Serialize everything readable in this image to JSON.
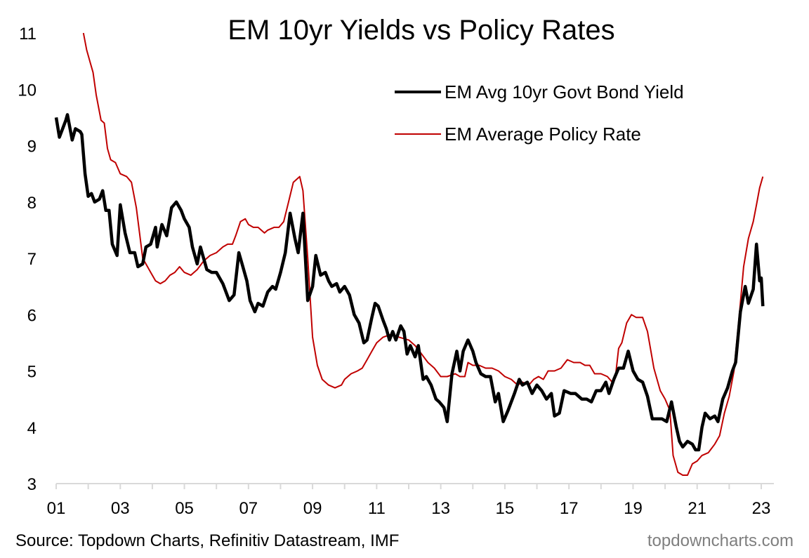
{
  "chart_data": {
    "type": "line",
    "title": "EM 10yr Yields vs Policy Rates",
    "xlabel": "",
    "ylabel": "",
    "xlim": [
      2001,
      2023
    ],
    "ylim": [
      3,
      11
    ],
    "grid": false,
    "yticks": [
      "3",
      "4",
      "5",
      "6",
      "7",
      "8",
      "9",
      "10",
      "11"
    ],
    "xticks": [
      "01",
      "03",
      "05",
      "07",
      "09",
      "11",
      "13",
      "15",
      "17",
      "19",
      "21",
      "23"
    ],
    "legend_position": "top-right",
    "series": [
      {
        "name": "EM Avg 10yr Govt Bond Yield",
        "color": "#000000",
        "points": [
          [
            2001.0,
            9.5
          ],
          [
            2001.1,
            9.15
          ],
          [
            2001.3,
            9.45
          ],
          [
            2001.35,
            9.55
          ],
          [
            2001.5,
            9.1
          ],
          [
            2001.6,
            9.3
          ],
          [
            2001.75,
            9.25
          ],
          [
            2001.8,
            9.2
          ],
          [
            2001.9,
            8.5
          ],
          [
            2002.0,
            8.1
          ],
          [
            2002.1,
            8.15
          ],
          [
            2002.2,
            8.0
          ],
          [
            2002.35,
            8.05
          ],
          [
            2002.45,
            8.2
          ],
          [
            2002.55,
            7.85
          ],
          [
            2002.65,
            7.85
          ],
          [
            2002.75,
            7.25
          ],
          [
            2002.9,
            7.05
          ],
          [
            2003.0,
            7.95
          ],
          [
            2003.15,
            7.45
          ],
          [
            2003.3,
            7.1
          ],
          [
            2003.45,
            7.1
          ],
          [
            2003.55,
            6.85
          ],
          [
            2003.7,
            6.9
          ],
          [
            2003.8,
            7.2
          ],
          [
            2003.95,
            7.25
          ],
          [
            2004.1,
            7.55
          ],
          [
            2004.15,
            7.2
          ],
          [
            2004.3,
            7.6
          ],
          [
            2004.45,
            7.4
          ],
          [
            2004.6,
            7.9
          ],
          [
            2004.75,
            8.0
          ],
          [
            2004.9,
            7.85
          ],
          [
            2005.0,
            7.7
          ],
          [
            2005.15,
            7.55
          ],
          [
            2005.25,
            7.2
          ],
          [
            2005.4,
            6.9
          ],
          [
            2005.5,
            7.2
          ],
          [
            2005.7,
            6.8
          ],
          [
            2005.85,
            6.75
          ],
          [
            2006.0,
            6.75
          ],
          [
            2006.2,
            6.55
          ],
          [
            2006.4,
            6.25
          ],
          [
            2006.55,
            6.35
          ],
          [
            2006.7,
            7.1
          ],
          [
            2006.8,
            6.9
          ],
          [
            2006.95,
            6.6
          ],
          [
            2007.05,
            6.25
          ],
          [
            2007.2,
            6.05
          ],
          [
            2007.3,
            6.2
          ],
          [
            2007.45,
            6.15
          ],
          [
            2007.6,
            6.4
          ],
          [
            2007.75,
            6.5
          ],
          [
            2007.85,
            6.45
          ],
          [
            2008.0,
            6.75
          ],
          [
            2008.15,
            7.1
          ],
          [
            2008.3,
            7.8
          ],
          [
            2008.45,
            7.35
          ],
          [
            2008.55,
            7.1
          ],
          [
            2008.7,
            7.8
          ],
          [
            2008.85,
            6.25
          ],
          [
            2009.0,
            6.5
          ],
          [
            2009.1,
            7.05
          ],
          [
            2009.25,
            6.7
          ],
          [
            2009.4,
            6.75
          ],
          [
            2009.5,
            6.6
          ],
          [
            2009.6,
            6.5
          ],
          [
            2009.75,
            6.55
          ],
          [
            2009.85,
            6.4
          ],
          [
            2010.0,
            6.5
          ],
          [
            2010.15,
            6.35
          ],
          [
            2010.3,
            6.0
          ],
          [
            2010.45,
            5.85
          ],
          [
            2010.6,
            5.5
          ],
          [
            2010.7,
            5.55
          ],
          [
            2010.85,
            5.95
          ],
          [
            2010.95,
            6.2
          ],
          [
            2011.05,
            6.15
          ],
          [
            2011.2,
            5.9
          ],
          [
            2011.3,
            5.75
          ],
          [
            2011.4,
            5.55
          ],
          [
            2011.5,
            5.7
          ],
          [
            2011.6,
            5.55
          ],
          [
            2011.75,
            5.8
          ],
          [
            2011.85,
            5.7
          ],
          [
            2011.95,
            5.3
          ],
          [
            2012.05,
            5.45
          ],
          [
            2012.2,
            5.25
          ],
          [
            2012.3,
            5.45
          ],
          [
            2012.45,
            4.85
          ],
          [
            2012.55,
            4.9
          ],
          [
            2012.7,
            4.75
          ],
          [
            2012.85,
            4.5
          ],
          [
            2012.95,
            4.45
          ],
          [
            2013.1,
            4.35
          ],
          [
            2013.2,
            4.1
          ],
          [
            2013.35,
            4.95
          ],
          [
            2013.5,
            5.35
          ],
          [
            2013.6,
            5.0
          ],
          [
            2013.7,
            5.35
          ],
          [
            2013.85,
            5.55
          ],
          [
            2014.0,
            5.35
          ],
          [
            2014.1,
            5.15
          ],
          [
            2014.25,
            4.95
          ],
          [
            2014.4,
            4.9
          ],
          [
            2014.55,
            4.9
          ],
          [
            2014.7,
            4.45
          ],
          [
            2014.8,
            4.6
          ],
          [
            2014.95,
            4.1
          ],
          [
            2015.1,
            4.3
          ],
          [
            2015.3,
            4.6
          ],
          [
            2015.45,
            4.85
          ],
          [
            2015.55,
            4.75
          ],
          [
            2015.7,
            4.8
          ],
          [
            2015.85,
            4.6
          ],
          [
            2016.0,
            4.75
          ],
          [
            2016.15,
            4.65
          ],
          [
            2016.3,
            4.5
          ],
          [
            2016.45,
            4.6
          ],
          [
            2016.55,
            4.2
          ],
          [
            2016.7,
            4.25
          ],
          [
            2016.85,
            4.65
          ],
          [
            2017.05,
            4.6
          ],
          [
            2017.2,
            4.6
          ],
          [
            2017.4,
            4.5
          ],
          [
            2017.55,
            4.5
          ],
          [
            2017.7,
            4.45
          ],
          [
            2017.85,
            4.65
          ],
          [
            2018.0,
            4.65
          ],
          [
            2018.15,
            4.8
          ],
          [
            2018.25,
            4.6
          ],
          [
            2018.4,
            4.85
          ],
          [
            2018.55,
            5.05
          ],
          [
            2018.7,
            5.05
          ],
          [
            2018.85,
            5.35
          ],
          [
            2019.0,
            5.0
          ],
          [
            2019.15,
            4.85
          ],
          [
            2019.3,
            4.8
          ],
          [
            2019.45,
            4.55
          ],
          [
            2019.6,
            4.15
          ],
          [
            2019.75,
            4.15
          ],
          [
            2019.9,
            4.15
          ],
          [
            2020.05,
            4.1
          ],
          [
            2020.2,
            4.45
          ],
          [
            2020.35,
            4.0
          ],
          [
            2020.45,
            3.75
          ],
          [
            2020.55,
            3.65
          ],
          [
            2020.7,
            3.75
          ],
          [
            2020.85,
            3.7
          ],
          [
            2020.95,
            3.6
          ],
          [
            2021.05,
            3.6
          ],
          [
            2021.15,
            4.0
          ],
          [
            2021.25,
            4.25
          ],
          [
            2021.4,
            4.15
          ],
          [
            2021.55,
            4.2
          ],
          [
            2021.65,
            4.1
          ],
          [
            2021.8,
            4.5
          ],
          [
            2021.95,
            4.7
          ],
          [
            2022.1,
            5.0
          ],
          [
            2022.2,
            5.15
          ],
          [
            2022.35,
            6.05
          ],
          [
            2022.5,
            6.5
          ],
          [
            2022.6,
            6.2
          ],
          [
            2022.75,
            6.45
          ],
          [
            2022.85,
            7.25
          ],
          [
            2022.95,
            6.6
          ],
          [
            2023.0,
            6.65
          ],
          [
            2023.05,
            6.15
          ]
        ]
      },
      {
        "name": "EM Average Policy Rate",
        "color": "#c00000",
        "points": [
          [
            2001.85,
            11.0
          ],
          [
            2001.95,
            10.7
          ],
          [
            2002.05,
            10.5
          ],
          [
            2002.15,
            10.3
          ],
          [
            2002.25,
            9.9
          ],
          [
            2002.4,
            9.45
          ],
          [
            2002.5,
            9.4
          ],
          [
            2002.6,
            8.95
          ],
          [
            2002.7,
            8.75
          ],
          [
            2002.85,
            8.7
          ],
          [
            2003.0,
            8.5
          ],
          [
            2003.2,
            8.45
          ],
          [
            2003.35,
            8.35
          ],
          [
            2003.5,
            7.9
          ],
          [
            2003.6,
            7.45
          ],
          [
            2003.7,
            7.0
          ],
          [
            2003.8,
            6.9
          ],
          [
            2003.95,
            6.75
          ],
          [
            2004.1,
            6.6
          ],
          [
            2004.25,
            6.55
          ],
          [
            2004.4,
            6.6
          ],
          [
            2004.55,
            6.7
          ],
          [
            2004.7,
            6.75
          ],
          [
            2004.85,
            6.85
          ],
          [
            2005.0,
            6.75
          ],
          [
            2005.2,
            6.7
          ],
          [
            2005.4,
            6.8
          ],
          [
            2005.6,
            6.95
          ],
          [
            2005.8,
            7.05
          ],
          [
            2006.0,
            7.1
          ],
          [
            2006.2,
            7.2
          ],
          [
            2006.35,
            7.25
          ],
          [
            2006.5,
            7.25
          ],
          [
            2006.6,
            7.4
          ],
          [
            2006.75,
            7.65
          ],
          [
            2006.9,
            7.7
          ],
          [
            2007.0,
            7.6
          ],
          [
            2007.15,
            7.55
          ],
          [
            2007.3,
            7.55
          ],
          [
            2007.5,
            7.45
          ],
          [
            2007.6,
            7.5
          ],
          [
            2007.8,
            7.55
          ],
          [
            2007.95,
            7.55
          ],
          [
            2008.1,
            7.65
          ],
          [
            2008.25,
            8.0
          ],
          [
            2008.4,
            8.35
          ],
          [
            2008.5,
            8.4
          ],
          [
            2008.6,
            8.45
          ],
          [
            2008.7,
            8.2
          ],
          [
            2008.85,
            7.0
          ],
          [
            2009.0,
            5.6
          ],
          [
            2009.15,
            5.1
          ],
          [
            2009.3,
            4.85
          ],
          [
            2009.5,
            4.75
          ],
          [
            2009.7,
            4.7
          ],
          [
            2009.9,
            4.75
          ],
          [
            2010.0,
            4.85
          ],
          [
            2010.2,
            4.95
          ],
          [
            2010.4,
            5.0
          ],
          [
            2010.55,
            5.05
          ],
          [
            2010.7,
            5.2
          ],
          [
            2010.85,
            5.35
          ],
          [
            2011.0,
            5.5
          ],
          [
            2011.2,
            5.6
          ],
          [
            2011.45,
            5.65
          ],
          [
            2011.7,
            5.6
          ],
          [
            2012.0,
            5.55
          ],
          [
            2012.2,
            5.45
          ],
          [
            2012.4,
            5.3
          ],
          [
            2012.6,
            5.15
          ],
          [
            2012.8,
            5.05
          ],
          [
            2013.0,
            4.9
          ],
          [
            2013.2,
            4.9
          ],
          [
            2013.45,
            4.95
          ],
          [
            2013.6,
            4.9
          ],
          [
            2013.75,
            4.9
          ],
          [
            2013.85,
            5.15
          ],
          [
            2014.0,
            5.1
          ],
          [
            2014.2,
            5.1
          ],
          [
            2014.4,
            5.05
          ],
          [
            2014.6,
            5.05
          ],
          [
            2014.8,
            5.0
          ],
          [
            2015.0,
            4.9
          ],
          [
            2015.2,
            4.85
          ],
          [
            2015.4,
            4.75
          ],
          [
            2015.55,
            4.8
          ],
          [
            2015.75,
            4.75
          ],
          [
            2015.9,
            4.85
          ],
          [
            2016.05,
            4.9
          ],
          [
            2016.2,
            4.85
          ],
          [
            2016.35,
            5.0
          ],
          [
            2016.55,
            5.0
          ],
          [
            2016.75,
            5.05
          ],
          [
            2016.95,
            5.2
          ],
          [
            2017.15,
            5.15
          ],
          [
            2017.35,
            5.15
          ],
          [
            2017.5,
            5.1
          ],
          [
            2017.65,
            5.1
          ],
          [
            2017.8,
            4.95
          ],
          [
            2018.0,
            4.95
          ],
          [
            2018.2,
            4.9
          ],
          [
            2018.35,
            4.8
          ],
          [
            2018.45,
            4.9
          ],
          [
            2018.55,
            5.4
          ],
          [
            2018.65,
            5.5
          ],
          [
            2018.8,
            5.85
          ],
          [
            2018.95,
            6.0
          ],
          [
            2019.1,
            5.95
          ],
          [
            2019.3,
            5.95
          ],
          [
            2019.45,
            5.7
          ],
          [
            2019.65,
            5.05
          ],
          [
            2019.85,
            4.65
          ],
          [
            2020.0,
            4.5
          ],
          [
            2020.15,
            4.3
          ],
          [
            2020.25,
            3.5
          ],
          [
            2020.4,
            3.2
          ],
          [
            2020.55,
            3.15
          ],
          [
            2020.7,
            3.15
          ],
          [
            2020.85,
            3.35
          ],
          [
            2021.0,
            3.4
          ],
          [
            2021.15,
            3.5
          ],
          [
            2021.35,
            3.55
          ],
          [
            2021.55,
            3.7
          ],
          [
            2021.7,
            3.85
          ],
          [
            2021.85,
            4.25
          ],
          [
            2022.0,
            4.55
          ],
          [
            2022.15,
            5.0
          ],
          [
            2022.3,
            5.9
          ],
          [
            2022.45,
            6.85
          ],
          [
            2022.6,
            7.35
          ],
          [
            2022.75,
            7.65
          ],
          [
            2022.85,
            7.95
          ],
          [
            2022.95,
            8.25
          ],
          [
            2023.05,
            8.45
          ]
        ]
      }
    ],
    "source": "Source: Topdown Charts, Refinitiv Datastream, IMF",
    "brand": "topdowncharts.com"
  }
}
